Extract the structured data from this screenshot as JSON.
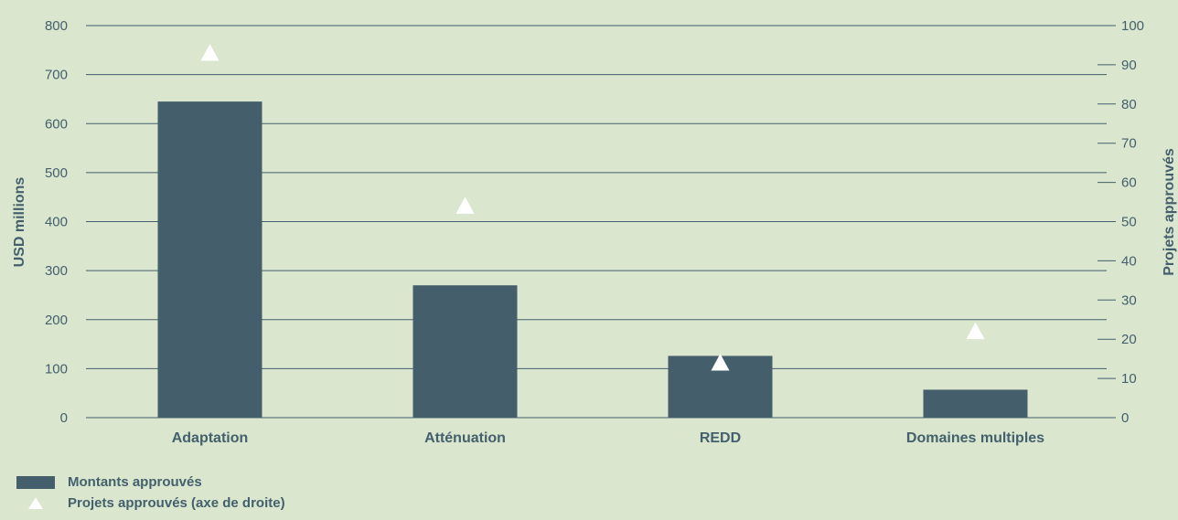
{
  "chart_data": {
    "type": "bar",
    "categories": [
      "Adaptation",
      "Atténuation",
      "REDD",
      "Domaines multiples"
    ],
    "series": [
      {
        "name": "Montants approuvés",
        "type": "bar",
        "axis": "left",
        "values": [
          645,
          270,
          126,
          57
        ]
      },
      {
        "name": "Projets approuvés (axe de droite)",
        "type": "marker-triangle",
        "axis": "right",
        "values": [
          93,
          54,
          14,
          22
        ]
      }
    ],
    "ylabel": "USD millions",
    "ylabel_right": "Projets approuvés",
    "ylim": [
      0,
      800
    ],
    "ylim_right": [
      0,
      100
    ],
    "yticks": [
      "0",
      "100",
      "200",
      "300",
      "400",
      "500",
      "600",
      "700",
      "800"
    ],
    "yticks_right": [
      "0",
      "10",
      "20",
      "30",
      "40",
      "50",
      "60",
      "70",
      "80",
      "90",
      "100"
    ],
    "grid": true,
    "legend_position": "bottom-left",
    "colors": {
      "bar": "#455e6b",
      "marker": "#ffffff",
      "background": "#dae6cd",
      "text": "#44606e"
    }
  },
  "legend": {
    "bar_label": "Montants approuvés",
    "marker_label": "Projets approuvés (axe de droite)"
  }
}
